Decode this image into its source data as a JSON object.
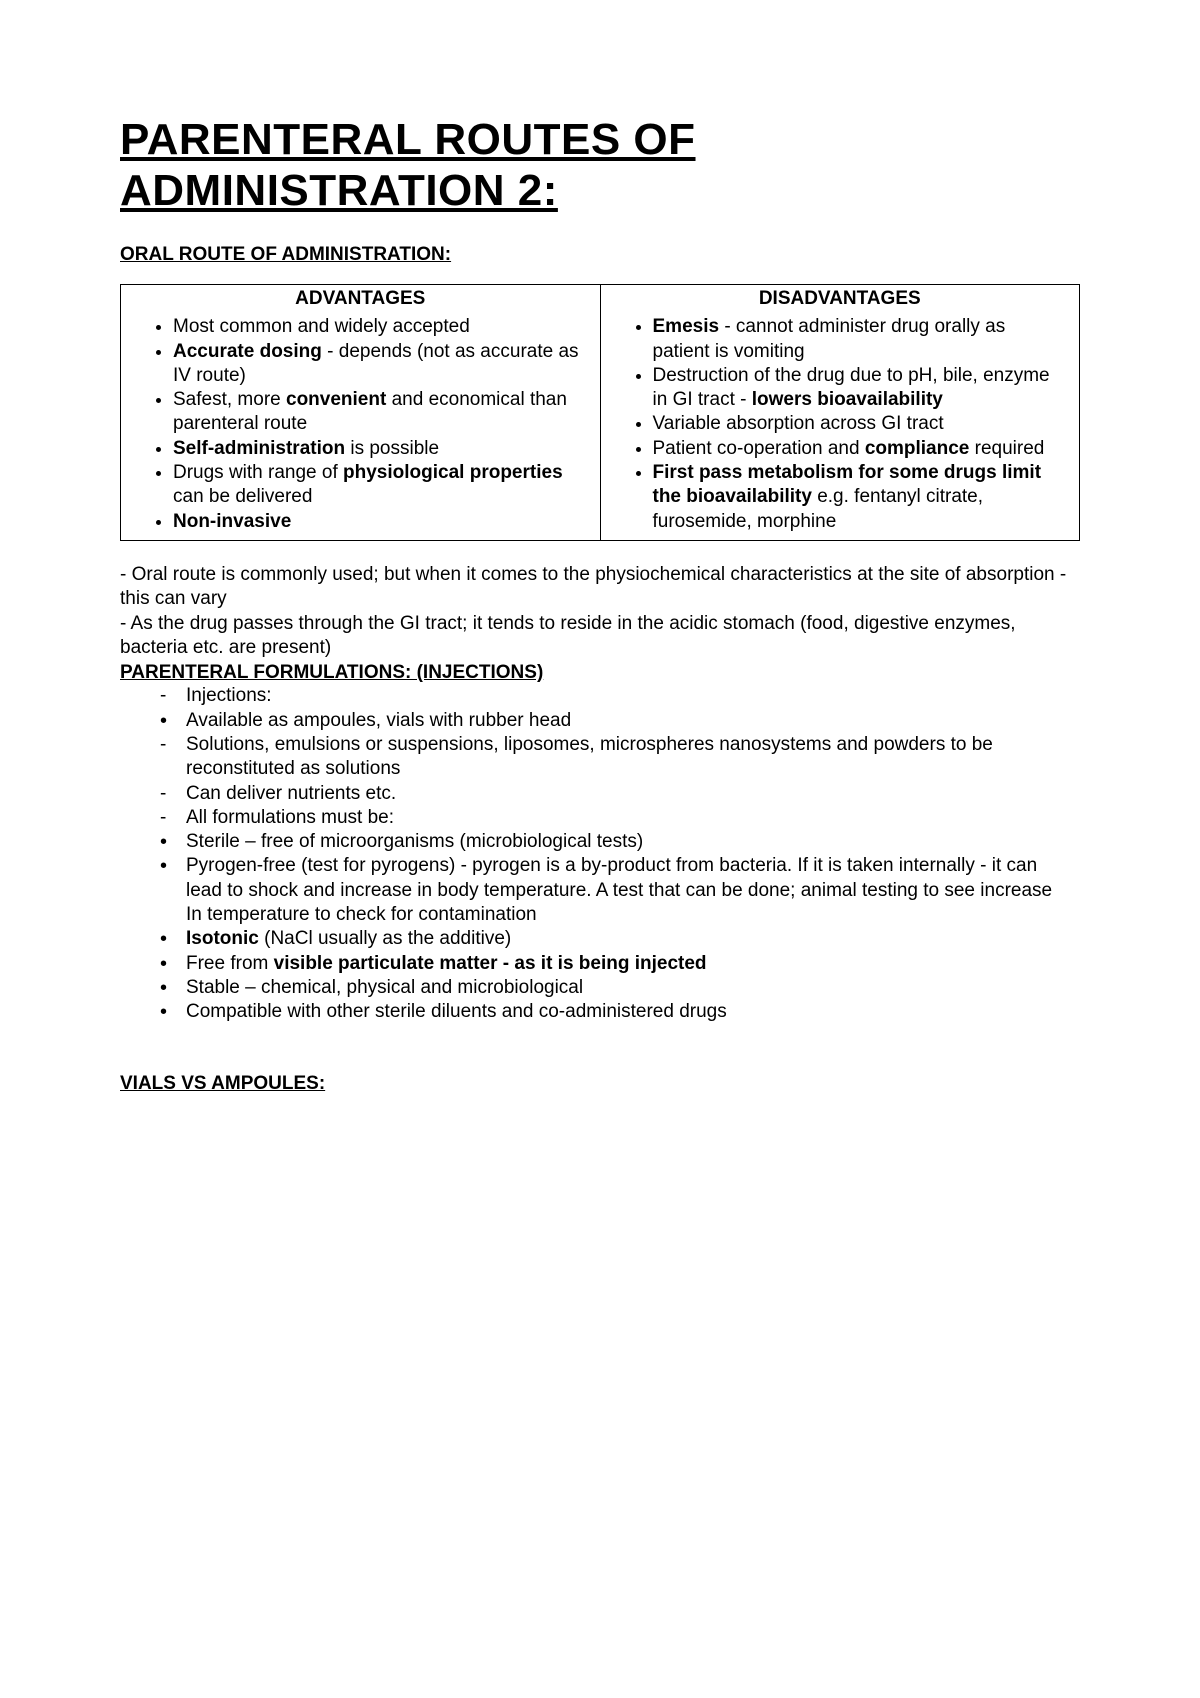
{
  "title": "PARENTERAL ROUTES OF ADMINISTRATION 2:",
  "oral_heading": "ORAL ROUTE OF ADMINISTRATION:",
  "table": {
    "headers": {
      "advantages": "ADVANTAGES",
      "disadvantages": "DISADVANTAGES"
    },
    "advantages": [
      "Most common and widely accepted",
      "<b>Accurate dosing</b> - depends (not as accurate as IV route)",
      "Safest, more <b>convenient</b> and economical than parenteral route",
      "<b>Self-administration</b> is possible",
      "Drugs with range of <b>physiological properties</b> can be delivered",
      "<b>Non-invasive</b>"
    ],
    "disadvantages": [
      "<b>Emesis</b> - cannot administer drug orally as patient is vomiting",
      "Destruction of the drug due to pH, bile, enzyme in GI tract - <b>lowers bioavailability</b>",
      "Variable absorption across GI tract",
      "Patient co-operation and <b>compliance</b> required",
      "<b>First pass metabolism for some drugs limit the bioavailability</b> e.g. fentanyl citrate, furosemide, morphine"
    ]
  },
  "notes": {
    "line1": "- Oral route is commonly used; but when it comes to the physiochemical characteristics at the site of absorption - this can vary",
    "line2": "- As the drug passes through the GI tract; it tends to reside in the acidic stomach (food, digestive enzymes, bacteria etc. are present)"
  },
  "formulations_heading": "PARENTERAL FORMULATIONS: (INJECTIONS)",
  "formulations": [
    {
      "marker": "dash",
      "html": "Injections:"
    },
    {
      "marker": "bullet",
      "html": "Available as ampoules, vials with rubber head"
    },
    {
      "marker": "dash",
      "html": "Solutions, emulsions or suspensions, liposomes, microspheres nanosystems and powders to be reconstituted as solutions"
    },
    {
      "marker": "dash",
      "html": "Can deliver nutrients etc."
    },
    {
      "marker": "dash",
      "html": "All formulations must be:"
    },
    {
      "marker": "bullet",
      "html": "Sterile – free of microorganisms (microbiological tests)"
    },
    {
      "marker": "bullet",
      "html": "Pyrogen-free (test for pyrogens) - pyrogen is a by-product from bacteria. If it is taken internally - it can lead to shock and increase in body temperature. A test that can be  done; animal testing to see increase In temperature to check for contamination"
    },
    {
      "marker": "bullet",
      "html": "<b>Isotonic</b> (NaCl usually as the additive)"
    },
    {
      "marker": "bullet",
      "html": "Free from <b>visible particulate matter - as it is being injected</b>"
    },
    {
      "marker": "bullet",
      "html": "Stable – chemical, physical and microbiological"
    },
    {
      "marker": "bullet",
      "html": "Compatible with other sterile diluents and co-administered drugs"
    }
  ],
  "vials_heading": "VIALS VS AMPOULES:"
}
